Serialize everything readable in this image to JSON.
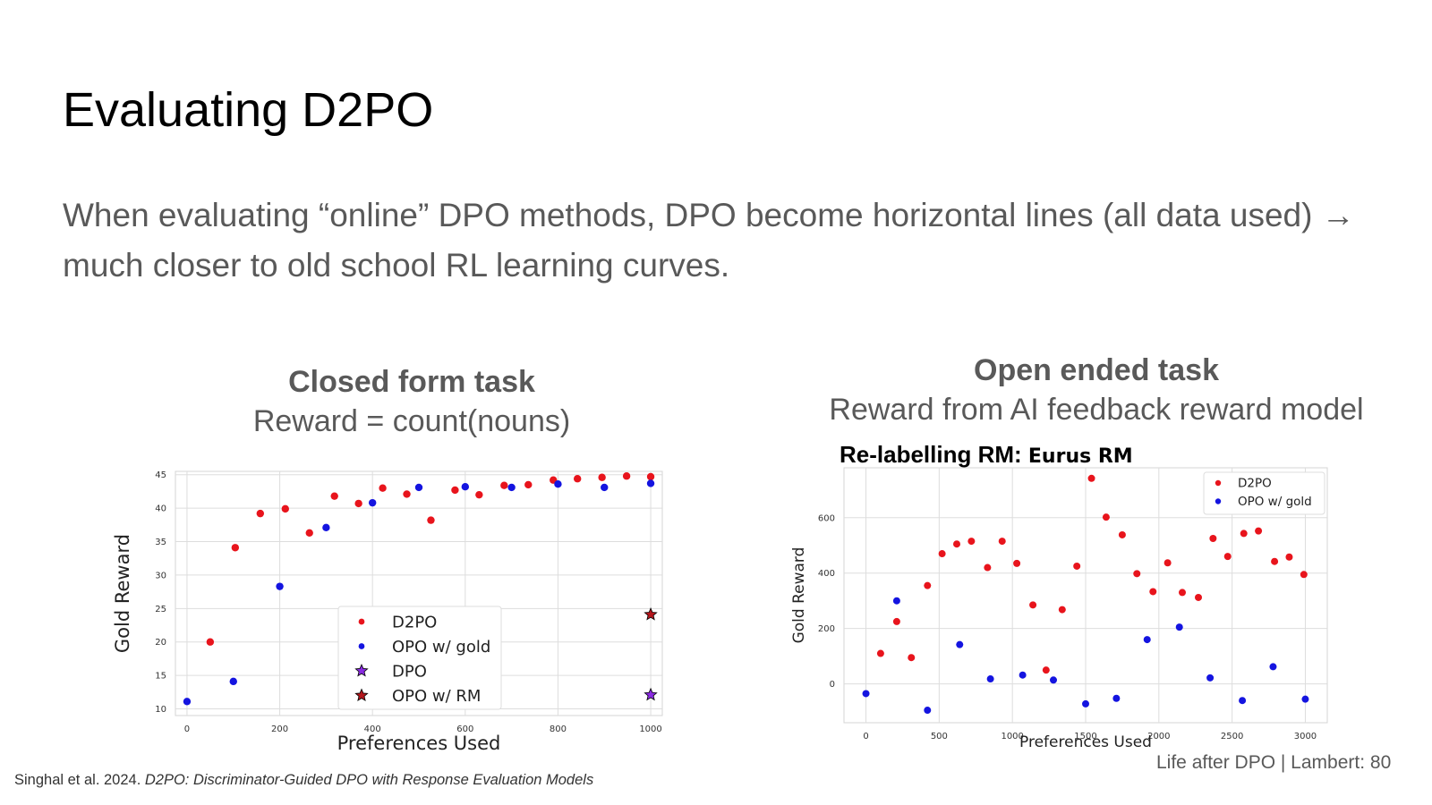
{
  "slide": {
    "title": "Evaluating D2PO",
    "body": "When evaluating “online” DPO methods, DPO become horizontal lines (all data used) → much closer to old school RL learning curves.",
    "left_heading": "Closed form task",
    "left_subheading": "Reward = count(nouns)",
    "right_heading": "Open ended task",
    "right_subheading": "Reward from AI feedback reward model",
    "relabel_prefix": "Re-labelling RM:",
    "relabel_model": "Eurus RM",
    "citation_authors": "Singhal et al. 2024.",
    "citation_title": "D2PO: Discriminator-Guided DPO with Response Evaluation Models",
    "footer": "Life after DPO | Lambert: 80"
  },
  "colors": {
    "d2po": "#e8141c",
    "opo_gold": "#1414e0",
    "dpo": "#8a2be2",
    "opo_rm": "#b3161c",
    "grid": "#dddddd"
  },
  "chart_data": [
    {
      "type": "scatter",
      "xlabel": "Preferences Used",
      "ylabel": "Gold Reward",
      "xlim": [
        -25,
        1025
      ],
      "ylim": [
        9,
        45.5
      ],
      "xticks": [
        0,
        200,
        400,
        600,
        800,
        1000
      ],
      "yticks": [
        10,
        15,
        20,
        25,
        30,
        35,
        40,
        45
      ],
      "grid": true,
      "legend_position": "lower-center",
      "series": [
        {
          "name": "D2PO",
          "marker": "circle",
          "color": "#e8141c",
          "points": [
            [
              50,
              20
            ],
            [
              104,
              34.1
            ],
            [
              158,
              39.2
            ],
            [
              212,
              39.9
            ],
            [
              264,
              36.3
            ],
            [
              318,
              41.8
            ],
            [
              370,
              40.7
            ],
            [
              422,
              43
            ],
            [
              474,
              42.1
            ],
            [
              526,
              38.2
            ],
            [
              578,
              42.7
            ],
            [
              630,
              42
            ],
            [
              684,
              43.4
            ],
            [
              736,
              43.5
            ],
            [
              790,
              44.2
            ],
            [
              842,
              44.4
            ],
            [
              895,
              44.6
            ],
            [
              948,
              44.8
            ],
            [
              1000,
              44.7
            ]
          ]
        },
        {
          "name": "OPO w/ gold",
          "marker": "circle",
          "color": "#1414e0",
          "points": [
            [
              0,
              11.1
            ],
            [
              100,
              14.1
            ],
            [
              200,
              28.3
            ],
            [
              300,
              37.1
            ],
            [
              400,
              40.8
            ],
            [
              500,
              43.1
            ],
            [
              600,
              43.2
            ],
            [
              700,
              43.1
            ],
            [
              800,
              43.6
            ],
            [
              900,
              43.1
            ],
            [
              1000,
              43.7
            ]
          ]
        },
        {
          "name": "DPO",
          "marker": "star",
          "color": "#8a2be2",
          "points": [
            [
              1000,
              12.1
            ]
          ]
        },
        {
          "name": "OPO w/ RM",
          "marker": "star",
          "color": "#b3161c",
          "points": [
            [
              1000,
              24.1
            ]
          ]
        }
      ]
    },
    {
      "type": "scatter",
      "xlabel": "Preferences Used",
      "ylabel": "Gold Reward",
      "xlim": [
        -150,
        3150
      ],
      "ylim": [
        -140,
        780
      ],
      "xticks": [
        0,
        500,
        1000,
        1500,
        2000,
        2500,
        3000
      ],
      "yticks": [
        0,
        200,
        400,
        600
      ],
      "grid": true,
      "legend_position": "top-right",
      "series": [
        {
          "name": "D2PO",
          "marker": "circle",
          "color": "#e8141c",
          "points": [
            [
              100,
              110
            ],
            [
              210,
              225
            ],
            [
              310,
              95
            ],
            [
              420,
              355
            ],
            [
              520,
              470
            ],
            [
              620,
              505
            ],
            [
              720,
              515
            ],
            [
              830,
              420
            ],
            [
              930,
              515
            ],
            [
              1030,
              435
            ],
            [
              1140,
              285
            ],
            [
              1230,
              50
            ],
            [
              1340,
              268
            ],
            [
              1440,
              425
            ],
            [
              1540,
              742
            ],
            [
              1640,
              602
            ],
            [
              1750,
              538
            ],
            [
              1850,
              398
            ],
            [
              1960,
              333
            ],
            [
              2060,
              437
            ],
            [
              2160,
              330
            ],
            [
              2270,
              312
            ],
            [
              2370,
              525
            ],
            [
              2470,
              460
            ],
            [
              2580,
              543
            ],
            [
              2680,
              552
            ],
            [
              2790,
              442
            ],
            [
              2890,
              458
            ],
            [
              2990,
              395
            ]
          ]
        },
        {
          "name": "OPO w/ gold",
          "marker": "circle",
          "color": "#1414e0",
          "points": [
            [
              0,
              -35
            ],
            [
              210,
              300
            ],
            [
              420,
              -95
            ],
            [
              640,
              142
            ],
            [
              850,
              18
            ],
            [
              1070,
              32
            ],
            [
              1280,
              14
            ],
            [
              1500,
              -72
            ],
            [
              1710,
              -52
            ],
            [
              1920,
              160
            ],
            [
              2140,
              205
            ],
            [
              2350,
              22
            ],
            [
              2570,
              -60
            ],
            [
              2780,
              62
            ],
            [
              3000,
              -55
            ]
          ]
        }
      ]
    }
  ]
}
